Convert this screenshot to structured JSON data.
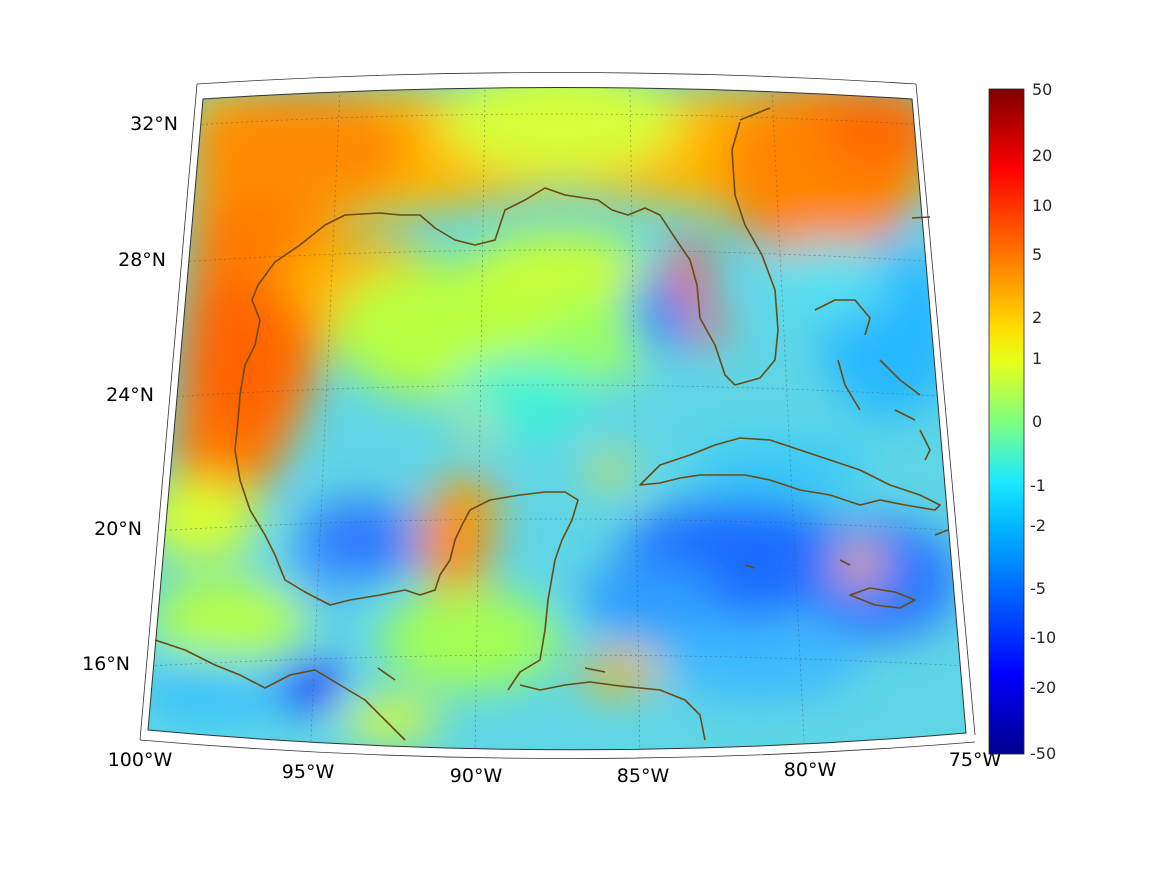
{
  "map": {
    "region": "Gulf of Mexico and Caribbean",
    "projection": "conic",
    "lon_range": [
      -100,
      -75
    ],
    "lat_range": [
      14,
      33
    ],
    "lon_ticks": [
      "100°W",
      "95°W",
      "90°W",
      "85°W",
      "80°W",
      "75°W"
    ],
    "lat_ticks": [
      "32°N",
      "28°N",
      "24°N",
      "20°N",
      "16°N"
    ],
    "grid": true,
    "coastline_color": "#6b4a12"
  },
  "colorbar": {
    "scale": "symmetric-log",
    "colormap": "jet",
    "labels": [
      "50",
      "20",
      "10",
      "5",
      "2",
      "1",
      "0",
      "-1",
      "-2",
      "-5",
      "-10",
      "-20",
      "-50"
    ]
  },
  "colors": {
    "dark_red": "#7f0000",
    "red": "#ff1a00",
    "orange": "#ff8000",
    "yellow": "#ffee00",
    "green": "#80ff80",
    "cyan": "#00e5ff",
    "blue": "#0050ff",
    "dark_blue": "#00008f"
  }
}
